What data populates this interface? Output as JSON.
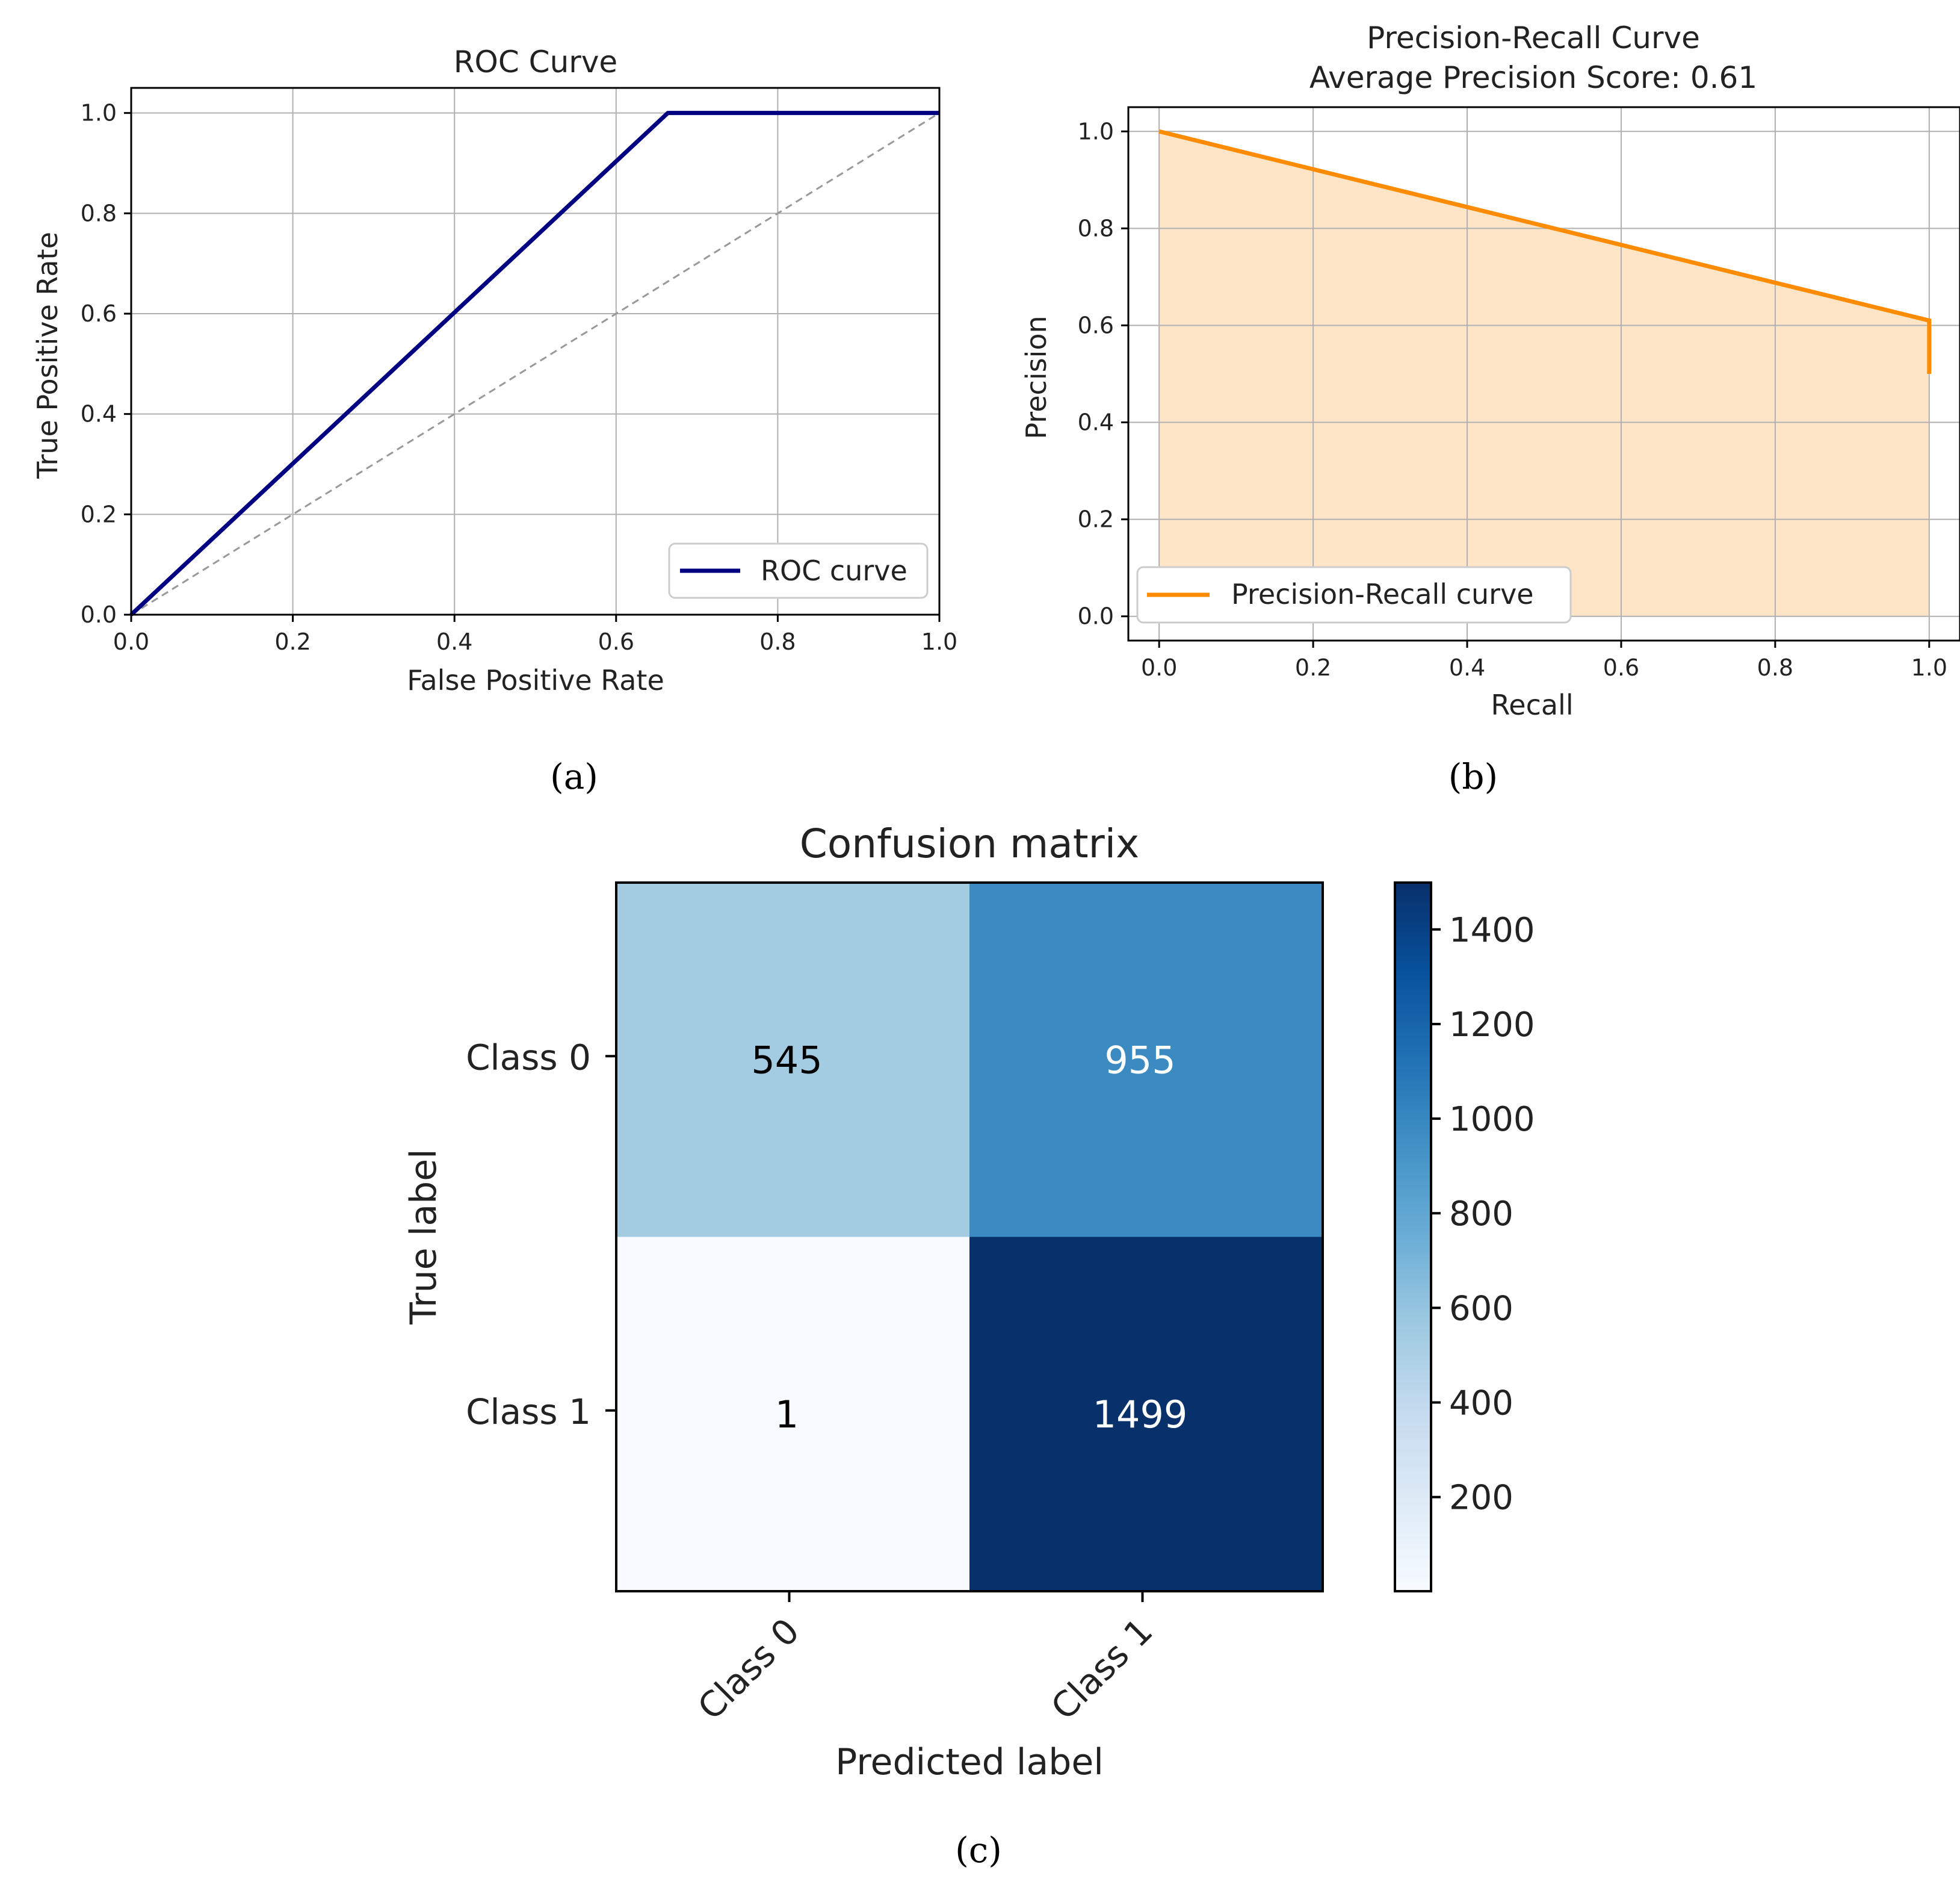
{
  "chart_data": [
    {
      "panel": "(a)",
      "type": "line",
      "title": "ROC Curve",
      "xlabel": "False Positive Rate",
      "ylabel": "True Positive Rate",
      "xlim": [
        0.0,
        1.0
      ],
      "ylim": [
        0.0,
        1.05
      ],
      "xticks": [
        "0.0",
        "0.2",
        "0.4",
        "0.6",
        "0.8",
        "1.0"
      ],
      "yticks": [
        "0.0",
        "0.2",
        "0.4",
        "0.6",
        "0.8",
        "1.0"
      ],
      "grid": true,
      "legend": "lower right",
      "series": [
        {
          "name": "ROC curve",
          "x": [
            0.0,
            0.664,
            1.0
          ],
          "y": [
            0.0,
            1.0,
            1.0
          ],
          "color": "#000080"
        },
        {
          "name": "chance",
          "x": [
            0.0,
            1.0
          ],
          "y": [
            0.0,
            1.0
          ],
          "color": "#999999",
          "dashed": true
        }
      ]
    },
    {
      "panel": "(b)",
      "type": "area",
      "title": "Precision-Recall Curve",
      "subtitle": "Average Precision Score: 0.61",
      "xlabel": "Recall",
      "ylabel": "Precision",
      "xlim": [
        -0.04,
        1.04
      ],
      "ylim": [
        -0.05,
        1.05
      ],
      "xticks": [
        "0.0",
        "0.2",
        "0.4",
        "0.6",
        "0.8",
        "1.0"
      ],
      "yticks": [
        "0.0",
        "0.2",
        "0.4",
        "0.6",
        "0.8",
        "1.0"
      ],
      "grid": true,
      "legend": "lower left",
      "series": [
        {
          "name": "Precision-Recall curve",
          "x": [
            0.0,
            1.0,
            1.0
          ],
          "y": [
            1.0,
            0.61,
            0.5
          ],
          "color": "#ff8c00",
          "fill": "#ffe5c8"
        }
      ]
    },
    {
      "panel": "(c)",
      "type": "heatmap",
      "title": "Confusion matrix",
      "xlabel": "Predicted label",
      "ylabel": "True label",
      "x_categories": [
        "Class 0",
        "Class 1"
      ],
      "y_categories": [
        "Class 0",
        "Class 1"
      ],
      "values": [
        [
          545,
          955
        ],
        [
          1,
          1499
        ]
      ],
      "cell_colors": [
        [
          "#a3cce3",
          "#3b8bc2"
        ],
        [
          "#f7fbff",
          "#08306b"
        ]
      ],
      "text_colors": [
        [
          "#000000",
          "#ffffff"
        ],
        [
          "#000000",
          "#ffffff"
        ]
      ],
      "colorbar_ticks": [
        "200",
        "400",
        "600",
        "800",
        "1000",
        "1200",
        "1400"
      ],
      "colorbar_range": [
        1,
        1499
      ]
    }
  ],
  "captions": {
    "a": "(a)",
    "b": "(b)",
    "c": "(c)"
  }
}
